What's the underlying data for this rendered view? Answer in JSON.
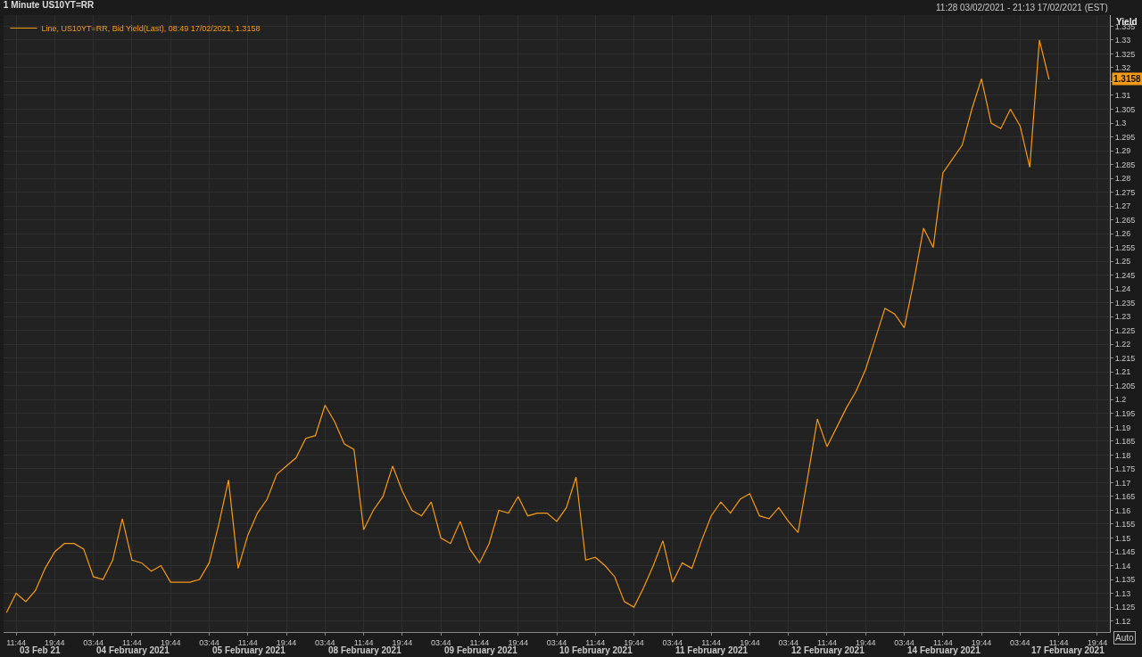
{
  "chart_data": {
    "type": "line",
    "title": "1 Minute US10YT=RR",
    "ylabel": "Yield",
    "annotations": [
      "11:28 03/02/2021 - 21:13 17/02/2021 (EST)",
      "03 Feb 21",
      "04 February 2021",
      "05 February 2021",
      "08 February 2021",
      "09 February 2021",
      "10 February 2021",
      "11 February 2021",
      "12 February 2021",
      "14 February 2021",
      "17 February 2021",
      "Auto",
      {
        "text": "1.3158",
        "y": 1.3158
      }
    ],
    "categories": [
      null,
      "11:44",
      null,
      null,
      null,
      "19:44",
      null,
      null,
      null,
      "03:44",
      null,
      null,
      null,
      "11:44",
      null,
      null,
      null,
      "19:44",
      null,
      null,
      null,
      "03:44",
      null,
      null,
      null,
      "11:44",
      null,
      null,
      null,
      "19:44",
      null,
      null,
      null,
      "03:44",
      null,
      null,
      null,
      "11:44",
      null,
      null,
      null,
      "19:44",
      null,
      null,
      null,
      "03:44",
      null,
      null,
      null,
      "11:44",
      null,
      null,
      null,
      "19:44",
      null,
      null,
      null,
      "03:44",
      null,
      null,
      null,
      "11:44",
      null,
      null,
      null,
      "19:44",
      null,
      null,
      null,
      "03:44",
      null,
      null,
      null,
      "11:44",
      null,
      null,
      null,
      "19:44",
      null,
      null,
      null,
      "03:44",
      null,
      null,
      null,
      "11:44",
      null,
      null,
      null,
      "19:44",
      null,
      null,
      null,
      "03:44",
      null,
      null,
      null,
      "11:44",
      null,
      null,
      null,
      "19:44",
      null,
      null,
      null,
      "03:44",
      null,
      null,
      null,
      "11:44",
      null,
      null,
      null,
      "19:44"
    ],
    "series": [
      {
        "name": "Line, US10YT=RR, Bid Yield(Last), 08:49 17/02/2021, 1.3158",
        "color": "#f79a14",
        "values": [
          1.123,
          1.13,
          1.127,
          1.131,
          1.139,
          1.145,
          1.148,
          1.148,
          1.146,
          1.136,
          1.135,
          1.142,
          1.157,
          1.142,
          1.141,
          1.138,
          1.14,
          1.134,
          1.134,
          1.134,
          1.135,
          1.141,
          1.155,
          1.171,
          1.139,
          1.151,
          1.159,
          1.164,
          1.173,
          1.176,
          1.179,
          1.186,
          1.187,
          1.198,
          1.192,
          1.184,
          1.182,
          1.153,
          1.16,
          1.165,
          1.176,
          1.167,
          1.16,
          1.158,
          1.163,
          1.15,
          1.148,
          1.156,
          1.146,
          1.141,
          1.148,
          1.16,
          1.159,
          1.165,
          1.158,
          1.159,
          1.159,
          1.156,
          1.161,
          1.172,
          1.142,
          1.143,
          1.14,
          1.136,
          1.127,
          1.125,
          1.132,
          1.14,
          1.149,
          1.134,
          1.141,
          1.139,
          1.149,
          1.158,
          1.163,
          1.159,
          1.164,
          1.166,
          1.158,
          1.157,
          1.161,
          1.156,
          1.152,
          1.172,
          1.193,
          1.183,
          1.19,
          1.197,
          1.203,
          1.211,
          1.222,
          1.233,
          1.231,
          1.226,
          1.243,
          1.262,
          1.255,
          1.282,
          1.287,
          1.292,
          1.305,
          1.316,
          1.3,
          1.298,
          1.305,
          1.299,
          1.284,
          1.33,
          1.3158,
          null,
          null,
          null,
          null,
          null
        ]
      }
    ],
    "ylim": [
      1.116,
      1.339
    ],
    "yticks": [
      1.12,
      1.125,
      1.13,
      1.135,
      1.14,
      1.145,
      1.15,
      1.155,
      1.16,
      1.165,
      1.17,
      1.175,
      1.18,
      1.185,
      1.19,
      1.195,
      1.2,
      1.205,
      1.21,
      1.215,
      1.22,
      1.225,
      1.23,
      1.235,
      1.24,
      1.245,
      1.25,
      1.255,
      1.26,
      1.265,
      1.27,
      1.275,
      1.28,
      1.285,
      1.29,
      1.295,
      1.3,
      1.305,
      1.31,
      {
        "value": 1.315,
        "label": null
      },
      1.32,
      1.325,
      1.33,
      1.335
    ],
    "grid": true,
    "legend": "top left",
    "line_style": "solid",
    "marker": "none"
  }
}
